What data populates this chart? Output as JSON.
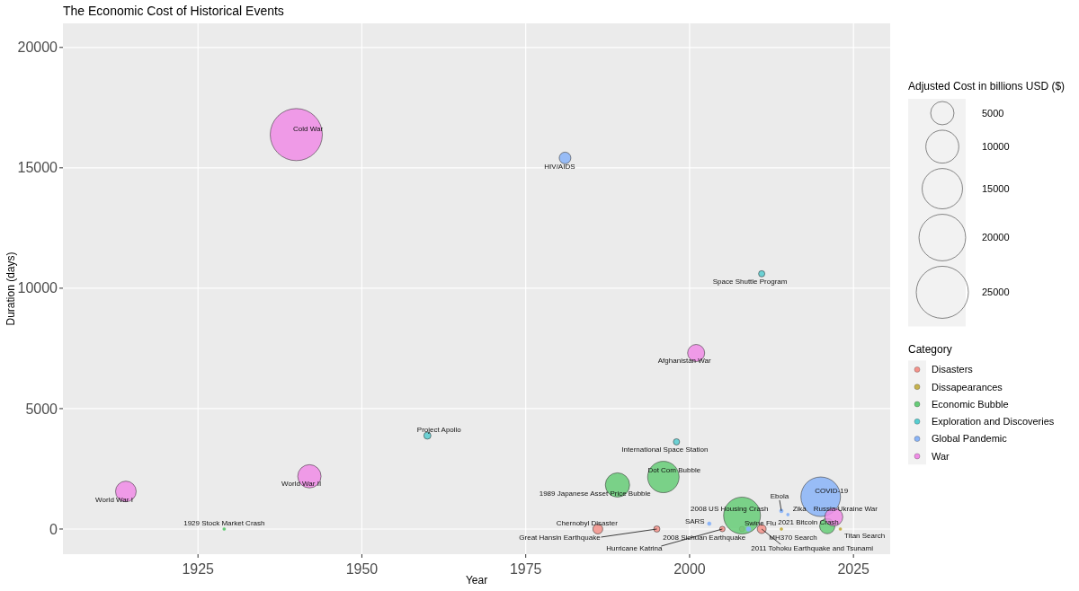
{
  "chart_data": {
    "type": "bubble",
    "title": "The Economic Cost of Historical Events",
    "xlabel": "Year",
    "ylabel": "Duration (days)",
    "legend_title": "Category",
    "xlim": [
      1904.4,
      2030.6
    ],
    "ylim": [
      -1045,
      21000
    ],
    "xticks": [
      1925,
      1950,
      1975,
      2000,
      2025
    ],
    "yticks": [
      0,
      5000,
      10000,
      15000,
      20000
    ],
    "grid": true,
    "legend": "right",
    "marker": "circle",
    "size_legend": [
      5000,
      10000,
      15000,
      20000,
      25000
    ],
    "series": [
      {
        "name": "Disasters",
        "color": "#f4928a",
        "x": [
          1986,
          1995,
          2005,
          2008,
          2011
        ],
        "values": [
          0,
          0,
          0,
          0,
          0
        ],
        "sizes": [
          900,
          360,
          270,
          270,
          740
        ]
      },
      {
        "name": "Dissapearances",
        "color": "#c6b24d",
        "x": [
          2014,
          2023
        ],
        "values": [
          0,
          0
        ],
        "sizes": [
          70,
          70
        ]
      },
      {
        "name": "Economic Bubble",
        "color": "#66cc77",
        "x": [
          1929,
          1989,
          1996,
          2008,
          2021
        ],
        "values": [
          0,
          1830,
          2160,
          560,
          120
        ],
        "sizes": [
          70,
          5420,
          9100,
          12500,
          2150
        ]
      },
      {
        "name": "Exploration and Discoveries",
        "color": "#56cdd0",
        "x": [
          1960,
          1998,
          2011
        ],
        "values": [
          3880,
          3620,
          10600
        ],
        "sizes": [
          470,
          360,
          360
        ]
      },
      {
        "name": "Global Pandemic",
        "color": "#8ab4f8",
        "x": [
          1981,
          2003,
          2009,
          2014,
          2015,
          2020
        ],
        "values": [
          15410,
          220,
          0,
          750,
          600,
          1340
        ],
        "sizes": [
          1250,
          120,
          190,
          120,
          70,
          14400
        ]
      },
      {
        "name": "War",
        "color": "#f08ce6",
        "x": [
          1914,
          1942,
          1940,
          2001,
          2022
        ],
        "values": [
          1560,
          2190,
          16380,
          7310,
          500
        ],
        "sizes": [
          3930,
          5000,
          25000,
          2680,
          2970
        ]
      }
    ],
    "annotations": [
      "Adjusted Cost in billions USD ($)",
      {
        "text": "World War I",
        "x": 1914,
        "y": 1560
      },
      {
        "text": "World War II",
        "x": 1942,
        "y": 2190
      },
      {
        "text": "1929 Stock Market Crash",
        "x": 1929,
        "y": 0
      },
      {
        "text": "Project Apollo",
        "x": 1960,
        "y": 3880
      },
      {
        "text": "Cold War",
        "x": 1940,
        "y": 16380
      },
      {
        "text": "HIV/AIDS",
        "x": 1981,
        "y": 15410
      },
      {
        "text": "Space Shuttle Program",
        "x": 2011,
        "y": 10600
      },
      {
        "text": "Afghanistan War",
        "x": 2001,
        "y": 7310
      },
      {
        "text": "International Space Station",
        "x": 1998,
        "y": 3620
      },
      {
        "text": "1989 Japanese Asset Price Bubble",
        "x": 1989,
        "y": 1830
      },
      {
        "text": "Dot Com Bubble",
        "x": 1996,
        "y": 2160
      },
      {
        "text": "Chernobyl Disaster",
        "x": 1986,
        "y": 0
      },
      {
        "text": "Great Hansin Earthquake",
        "x": 1995,
        "y": 0
      },
      {
        "text": "Hurricane Katrina",
        "x": 2005,
        "y": 0
      },
      {
        "text": "2008 Sichuan Earthquake",
        "x": 2008,
        "y": 0
      },
      {
        "text": "2008 US Housing Crash",
        "x": 2008,
        "y": 560
      },
      {
        "text": "SARS",
        "x": 2003,
        "y": 220
      },
      {
        "text": "Swine Flu",
        "x": 2009,
        "y": 0
      },
      {
        "text": "2011 Tohoku Earthquake and Tsunami",
        "x": 2011,
        "y": 0
      },
      {
        "text": "Ebola",
        "x": 2014,
        "y": 750
      },
      {
        "text": "Zika",
        "x": 2015,
        "y": 600
      },
      {
        "text": "MH370 Search",
        "x": 2014,
        "y": 0
      },
      {
        "text": "Titan Search",
        "x": 2023,
        "y": 0
      },
      {
        "text": "COVID-19",
        "x": 2020,
        "y": 1340
      },
      {
        "text": "Russia-Ukraine War",
        "x": 2022,
        "y": 500
      },
      {
        "text": "2021 Bitcoin Crash",
        "x": 2021,
        "y": 120
      }
    ]
  }
}
